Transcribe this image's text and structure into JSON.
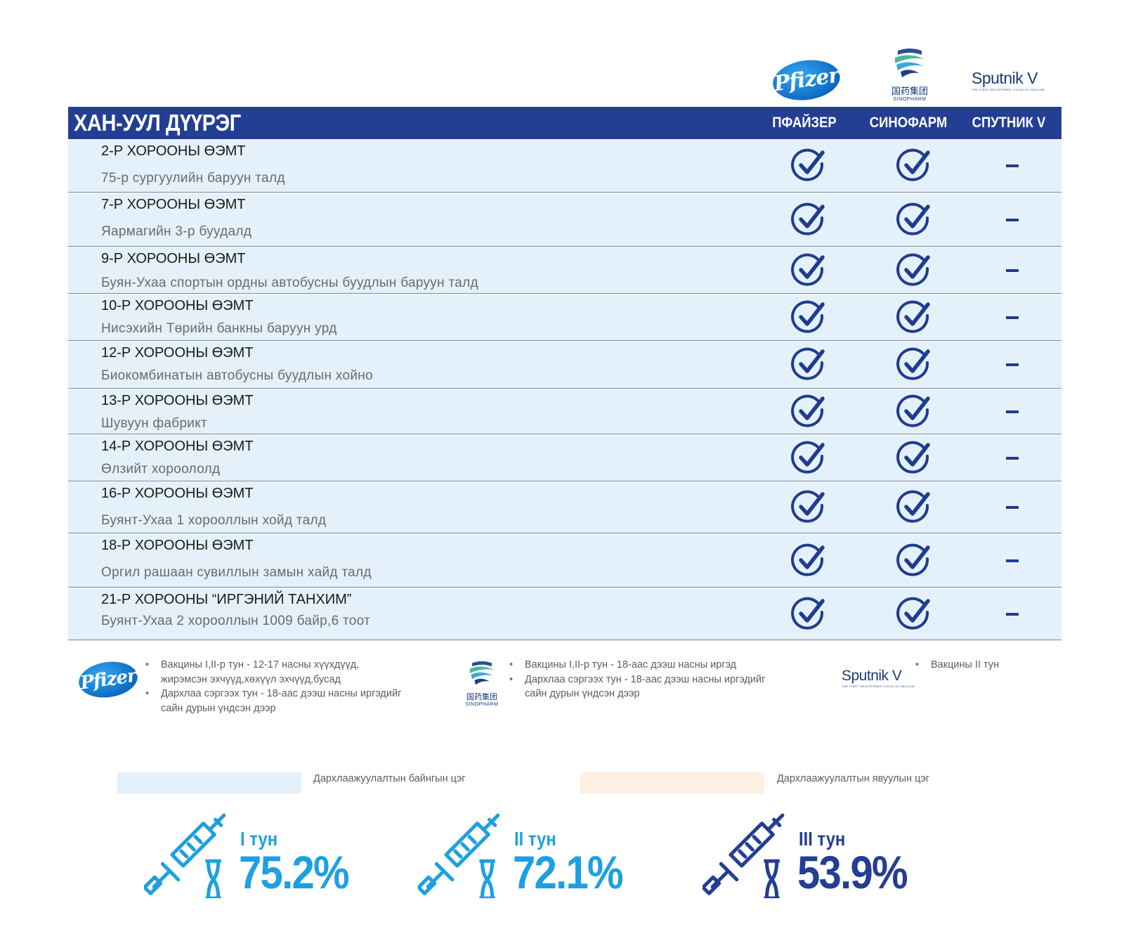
{
  "header": {
    "district_title": "ХАН-УУЛ ДҮҮРЭГ",
    "columns": [
      "ПФАЙЗЕР",
      "СИНОФАРМ",
      "СПУТНИК V"
    ],
    "logos": {
      "pfizer": "Pfizer",
      "sinopharm_cn": "国药集团",
      "sinopharm_en": "SINOPHARM",
      "sputnik": "Sputnik V",
      "sputnik_tag": "THE FIRST REGISTERED COVID-19 VACCINE"
    }
  },
  "rows": [
    {
      "name": "2-Р ХОРООНЫ ӨЭМТ",
      "address": "75-р сургуулийн баруун талд",
      "pfizer": "check",
      "sinopharm": "check",
      "sputnik": "dash"
    },
    {
      "name": "7-Р ХОРООНЫ ӨЭМТ",
      "address": "Яармагийн 3-р буудалд",
      "pfizer": "check",
      "sinopharm": "check",
      "sputnik": "dash"
    },
    {
      "name": "9-Р ХОРООНЫ ӨЭМТ",
      "address": "Буян-Ухаа спортын ордны автобусны буудлын баруун талд",
      "pfizer": "check",
      "sinopharm": "check",
      "sputnik": "dash"
    },
    {
      "name": "10-Р ХОРООНЫ ӨЭМТ",
      "address": "Нисэхийн Төрийн банкны баруун урд",
      "pfizer": "check",
      "sinopharm": "check",
      "sputnik": "dash"
    },
    {
      "name": "12-Р ХОРООНЫ ӨЭМТ",
      "address": "Биокомбинатын автобусны буудлын хойно",
      "pfizer": "check",
      "sinopharm": "check",
      "sputnik": "dash"
    },
    {
      "name": "13-Р ХОРООНЫ ӨЭМТ",
      "address": "Шувуун фабрикт",
      "pfizer": "check",
      "sinopharm": "check",
      "sputnik": "dash"
    },
    {
      "name": "14-Р ХОРООНЫ ӨЭМТ",
      "address": "Өлзийт хороололд",
      "pfizer": "check",
      "sinopharm": "check",
      "sputnik": "dash"
    },
    {
      "name": "16-Р ХОРООНЫ ӨЭМТ",
      "address": "Буянт-Ухаа 1 хорооллын хойд талд",
      "pfizer": "check",
      "sinopharm": "check",
      "sputnik": "dash"
    },
    {
      "name": "18-Р ХОРООНЫ ӨЭМТ",
      "address": "Оргил рашаан сувиллын замын хайд  талд",
      "pfizer": "check",
      "sinopharm": "check",
      "sputnik": "dash"
    },
    {
      "name": "21-Р  ХОРООНЫ “ИРГЭНИЙ ТАНХИМ”",
      "address": "Буянт-Ухаа 2 хорооллын 1009 байр,6 тоот",
      "pfizer": "check",
      "sinopharm": "check",
      "sputnik": "dash"
    }
  ],
  "notes": {
    "pfizer": [
      "Вакцины I,II-р тун - 12-17 насны хүүхдүүд, жирэмсэн эхчүүд,хөхүүл эхчүүд,бусад",
      "Дархлаа сэргээх тун - 18-аас дээш насны иргэдийг сайн дурын үндсэн дээр"
    ],
    "sinopharm": [
      "Вакцины I,II-р тун - 18-аас дээш насны иргэд",
      "Дархлаа сэргээх тун - 18-аас дээш насны иргэдийг сайн дурын үндсэн дээр"
    ],
    "sputnik": [
      "Вакцины II тун"
    ]
  },
  "legend": {
    "fixed_label": "Дархлаажуулалтын байнгын цэг",
    "mobile_label": "Дархлаажуулалтын явуулын цэг",
    "fixed_color": "#e4f1fb",
    "mobile_color": "#fdf0e2"
  },
  "doses": [
    {
      "label": "I тун",
      "value": "75.2%",
      "color": "#1ea0e0"
    },
    {
      "label": "II тун",
      "value": "72.1%",
      "color": "#1ea0e0"
    },
    {
      "label": "III тун",
      "value": "53.9%",
      "color": "#233e93"
    }
  ],
  "colors": {
    "brand_navy": "#233e93",
    "accent_blue": "#1ea0e0",
    "row_bg": "#e4f1fb"
  }
}
